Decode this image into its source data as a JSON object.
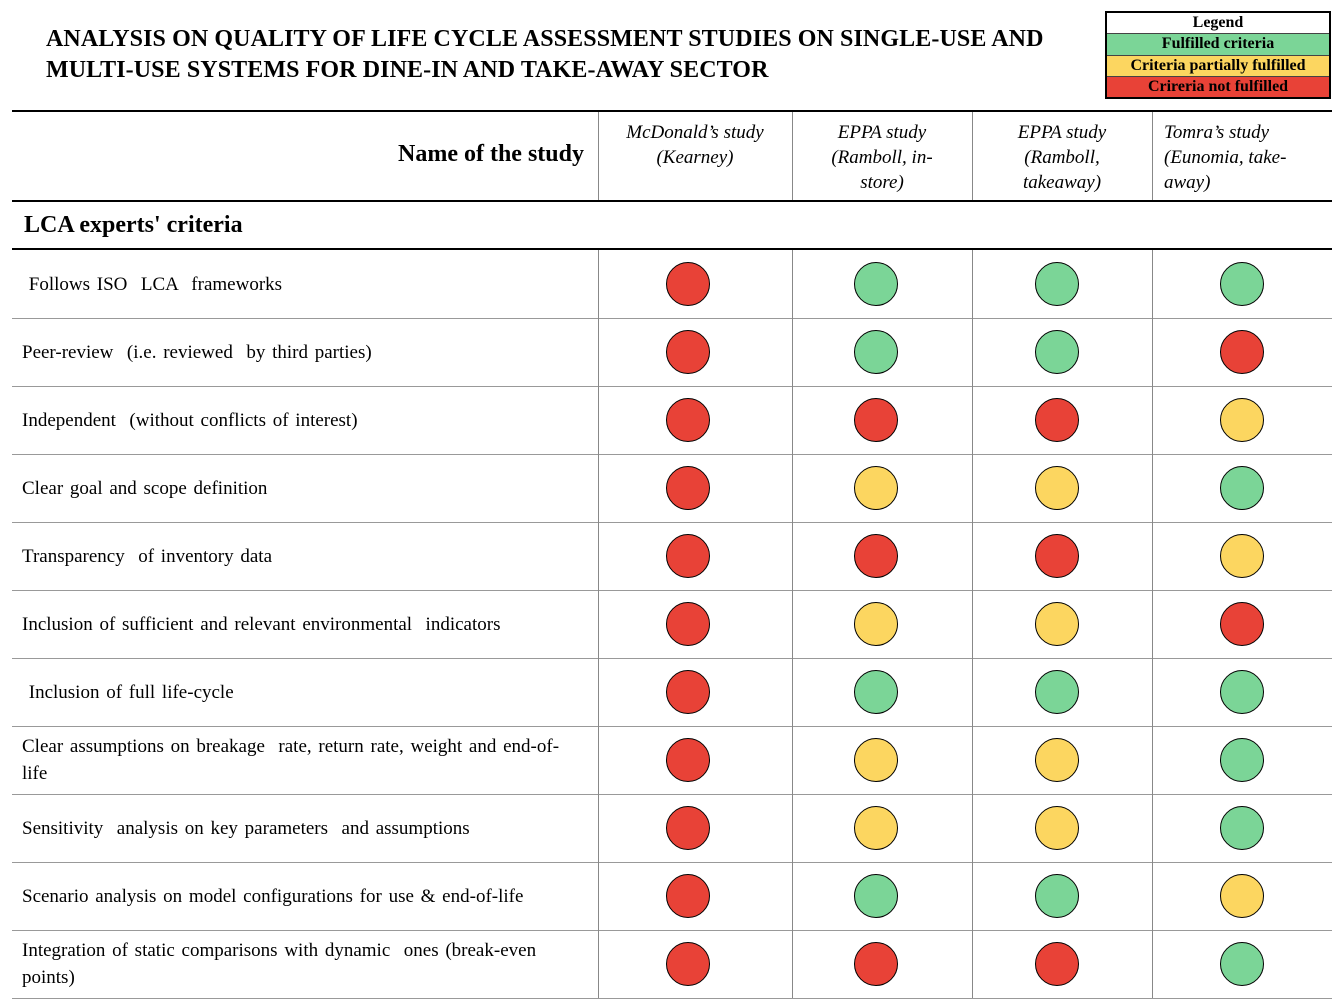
{
  "title": "ANALYSIS ON QUALITY OF LIFE CYCLE ASSESSMENT STUDIES ON SINGLE-USE AND MULTI-USE SYSTEMS FOR DINE-IN AND TAKE-AWAY SECTOR",
  "legend": {
    "heading": "Legend",
    "items": [
      {
        "label": "Fulfilled criteria",
        "color": "#7bd597"
      },
      {
        "label": "Criteria partially fulfilled",
        "color": "#fcd660"
      },
      {
        "label": "Crireria not fulfilled",
        "color": "#e84237"
      }
    ]
  },
  "table": {
    "name_header": "Name of the study",
    "studies": [
      {
        "line1": "McDonald’s study",
        "line2": "(Kearney)",
        "line3": ""
      },
      {
        "line1": "EPPA study",
        "line2": "(Ramboll, in-",
        "line3": "store)"
      },
      {
        "line1": "EPPA study",
        "line2": "(Ramboll,",
        "line3": "takeaway)"
      },
      {
        "line1": "Tomra’s study",
        "line2": "(Eunomia, take-",
        "line3": "away)"
      }
    ],
    "section_title": "LCA experts' criteria",
    "status_colors": {
      "green": "#7bd597",
      "yellow": "#fcd660",
      "red": "#e84237"
    },
    "rows": [
      {
        "criterion": " Follows ISO  LCA  frameworks",
        "ratings": [
          "red",
          "green",
          "green",
          "green"
        ]
      },
      {
        "criterion": "Peer-review  (i.e. reviewed  by third parties)",
        "ratings": [
          "red",
          "green",
          "green",
          "red"
        ]
      },
      {
        "criterion": "Independent  (without conflicts of interest)",
        "ratings": [
          "red",
          "red",
          "red",
          "yellow"
        ]
      },
      {
        "criterion": "Clear goal and scope definition",
        "ratings": [
          "red",
          "yellow",
          "yellow",
          "green"
        ]
      },
      {
        "criterion": "Transparency  of inventory data",
        "ratings": [
          "red",
          "red",
          "red",
          "yellow"
        ]
      },
      {
        "criterion": "Inclusion of sufficient and relevant environmental  indicators",
        "ratings": [
          "red",
          "yellow",
          "yellow",
          "red"
        ]
      },
      {
        "criterion": " Inclusion of full life-cycle",
        "ratings": [
          "red",
          "green",
          "green",
          "green"
        ]
      },
      {
        "criterion": "Clear assumptions on breakage  rate, return rate, weight and end-of-life",
        "ratings": [
          "red",
          "yellow",
          "yellow",
          "green"
        ]
      },
      {
        "criterion": "Sensitivity  analysis on key parameters  and assumptions",
        "ratings": [
          "red",
          "yellow",
          "yellow",
          "green"
        ]
      },
      {
        "criterion": "Scenario analysis on model configurations for use & end-of-life",
        "ratings": [
          "red",
          "green",
          "green",
          "yellow"
        ]
      },
      {
        "criterion": "Integration of static comparisons with dynamic  ones (break-even points)",
        "ratings": [
          "red",
          "red",
          "red",
          "green"
        ]
      }
    ]
  }
}
